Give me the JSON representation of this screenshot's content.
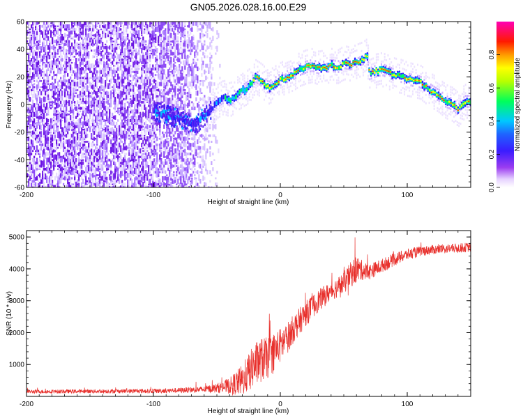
{
  "figure_title": "GN05.2026.028.16.00.E29",
  "colors": {
    "snr_line": "#e8302c",
    "spectrogram_base": "#7a1ee8",
    "axis": "#000000"
  },
  "chart_data": [
    {
      "type": "heatmap",
      "title": "",
      "xlabel": "Height of straight line (km)",
      "ylabel": "Frequency (Hz)",
      "xlim": [
        -200,
        150
      ],
      "ylim": [
        -60,
        60
      ],
      "xticks": [
        -200,
        -100,
        0,
        100
      ],
      "yticks": [
        -60,
        -40,
        -20,
        0,
        20,
        40,
        60
      ],
      "colorbar": {
        "label": "Normalized spectral amplitude",
        "range": [
          0.0,
          1.0
        ],
        "ticks": [
          0.0,
          0.2,
          0.4,
          0.6,
          0.8
        ],
        "tick_labels": [
          "0.0",
          "0.2",
          "0.4",
          "0.6",
          "0.8"
        ],
        "colormap": [
          "#ffffff",
          "#d8b8ff",
          "#8a2be2",
          "#2222ff",
          "#00ccff",
          "#00ff66",
          "#ffff00",
          "#ff8800",
          "#ff0000",
          "#ff00aa"
        ]
      },
      "noise_region_x": [
        -200,
        -50
      ],
      "ridge": {
        "description": "frequency of peak spectral amplitude vs height",
        "x": [
          -100,
          -90,
          -80,
          -75,
          -70,
          -65,
          -60,
          -55,
          -50,
          -45,
          -40,
          -35,
          -30,
          -25,
          -20,
          -15,
          -10,
          -5,
          0,
          5,
          10,
          15,
          20,
          25,
          30,
          35,
          40,
          45,
          50,
          55,
          60,
          65,
          68,
          70,
          75,
          80,
          85,
          90,
          95,
          100,
          105,
          110,
          115,
          120,
          125,
          130,
          135,
          140,
          145,
          150
        ],
        "y": [
          -5,
          -8,
          -10,
          -12,
          -15,
          -13,
          -8,
          -3,
          2,
          5,
          3,
          7,
          10,
          13,
          20,
          17,
          12,
          15,
          18,
          20,
          22,
          25,
          27,
          28,
          26,
          27,
          28,
          27,
          30,
          29,
          31,
          33,
          35,
          22,
          24,
          25,
          23,
          21,
          20,
          18,
          17,
          16,
          12,
          9,
          6,
          2,
          0,
          -4,
          2,
          2
        ]
      }
    },
    {
      "type": "line",
      "title": "",
      "xlabel": "Height of straight line (km)",
      "ylabel": "SNR (10 * v/v)",
      "xlim": [
        -200,
        150
      ],
      "ylim": [
        0,
        5200
      ],
      "xticks": [
        -200,
        -100,
        0,
        100
      ],
      "yticks": [
        1000,
        2000,
        3000,
        4000,
        5000
      ],
      "series": [
        {
          "name": "SNR",
          "x": [
            -200,
            -150,
            -100,
            -80,
            -60,
            -50,
            -40,
            -30,
            -25,
            -20,
            -15,
            -10,
            -5,
            0,
            5,
            10,
            20,
            30,
            40,
            50,
            55,
            60,
            65,
            70,
            80,
            90,
            100,
            110,
            120,
            130,
            140,
            150
          ],
          "values": [
            150,
            160,
            170,
            190,
            220,
            260,
            330,
            500,
            750,
            1000,
            1150,
            1200,
            1400,
            1600,
            1800,
            2100,
            2600,
            3000,
            3300,
            3550,
            3800,
            4000,
            3950,
            3900,
            4100,
            4300,
            4450,
            4550,
            4600,
            4630,
            4650,
            4680
          ],
          "noise_amplitude": [
            60,
            60,
            70,
            80,
            100,
            150,
            250,
            500,
            600,
            700,
            700,
            650,
            600,
            550,
            500,
            450,
            400,
            350,
            300,
            350,
            400,
            450,
            300,
            250,
            220,
            200,
            180,
            160,
            150,
            150,
            150,
            150
          ]
        }
      ]
    }
  ]
}
